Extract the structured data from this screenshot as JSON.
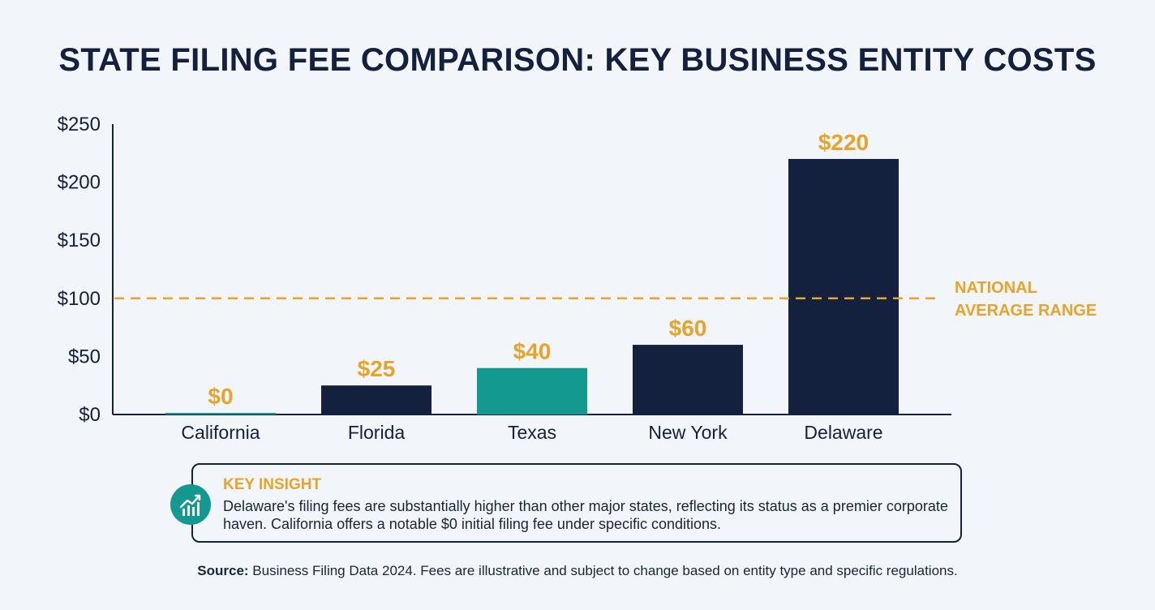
{
  "title": "STATE FILING FEE COMPARISON: KEY BUSINESS ENTITY COSTS",
  "colors": {
    "navy": "#13213f",
    "teal": "#13998f",
    "gold": "#e8a42a",
    "background": "#f2f5f9",
    "text": "#1b2438"
  },
  "chart_data": {
    "type": "bar",
    "categories": [
      "California",
      "Florida",
      "Texas",
      "New York",
      "Delaware"
    ],
    "values": [
      0,
      25,
      40,
      60,
      220
    ],
    "data_labels": [
      "$0",
      "$25",
      "$40",
      "$60",
      "$220"
    ],
    "bar_colors": [
      "#13998f",
      "#13213f",
      "#13998f",
      "#13213f",
      "#13213f"
    ],
    "ylim": [
      0,
      250
    ],
    "yticks": [
      0,
      50,
      100,
      150,
      200,
      250
    ],
    "ytick_labels": [
      "$0",
      "$50",
      "$100",
      "$150",
      "$200",
      "$250"
    ],
    "grid": false,
    "reference_line": {
      "value": 100,
      "label_lines": [
        "NATIONAL",
        "AVERAGE RANGE"
      ],
      "style": "dashed",
      "color": "#e8a42a"
    }
  },
  "insight": {
    "icon": "trending-up-chart-icon",
    "heading": "KEY INSIGHT",
    "text": "Delaware's filing fees are substantially higher than other major states, reflecting its status as a premier corporate haven. California offers a notable $0 initial filing fee under specific conditions."
  },
  "source": {
    "label": "Source:",
    "text": " Business Filing Data 2024. Fees are illustrative and subject to change based on entity type and specific regulations."
  }
}
